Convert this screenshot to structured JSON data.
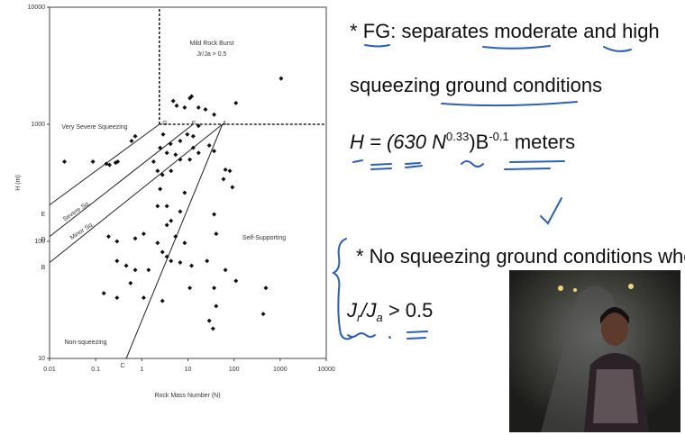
{
  "chart_data": {
    "type": "scatter",
    "xlabel": "Rock Mass Number (N)",
    "ylabel": "H (m)",
    "xscale": "log",
    "yscale": "log",
    "xlim": [
      0.01,
      10000
    ],
    "ylim": [
      10,
      10000
    ],
    "xticks": [
      0.01,
      0.1,
      1,
      10,
      100,
      1000,
      10000
    ],
    "yticks": [
      10,
      100,
      1000,
      10000
    ],
    "color": "#111111",
    "x": [
      0.021,
      0.087,
      0.17,
      0.2,
      0.27,
      0.3,
      0.6,
      0.72,
      2.9,
      2.5,
      4.2,
      6.8,
      9.7,
      13,
      17,
      4.8,
      5.7,
      8.5,
      11,
      12,
      17,
      24,
      37,
      110,
      1050,
      3.5,
      5.4,
      6.8,
      11,
      13,
      17,
      29,
      37,
      1.8,
      2.2,
      2.8,
      4.3,
      65,
      81,
      59,
      92,
      0.19,
      0.29,
      0.72,
      1.1,
      2.2,
      2.8,
      3.5,
      4.3,
      5.4,
      8.5,
      0.29,
      0.46,
      0.72,
      1.4,
      3.5,
      4.3,
      6.8,
      12,
      26,
      0.15,
      0.29,
      0.57,
      1.1,
      2.8,
      11,
      37,
      41,
      65,
      37,
      41,
      29,
      35,
      490,
      430,
      110,
      2.2,
      3.5,
      6.8,
      2.5,
      8.5
    ],
    "values": [
      480,
      480,
      460,
      450,
      470,
      480,
      720,
      790,
      820,
      630,
      680,
      720,
      820,
      790,
      970,
      1580,
      1440,
      1390,
      1670,
      1730,
      1390,
      1340,
      1210,
      1520,
      2460,
      570,
      550,
      500,
      500,
      630,
      570,
      660,
      590,
      480,
      400,
      370,
      400,
      410,
      400,
      340,
      290,
      110,
      100,
      106,
      116,
      97,
      81,
      138,
      150,
      110,
      97,
      68,
      62,
      57,
      57,
      74,
      68,
      66,
      62,
      68,
      36,
      33,
      44,
      33,
      31,
      40,
      170,
      116,
      57,
      40,
      28,
      21,
      18,
      40,
      24,
      46,
      200,
      200,
      180,
      280,
      260
    ],
    "boundaries": [
      {
        "x": [
          2.4,
          2.4
        ],
        "y": [
          1000,
          10000
        ],
        "dashed": true
      },
      {
        "x": [
          2.4,
          10000
        ],
        "y": [
          1000,
          1000
        ],
        "dashed": true
      },
      {
        "x": [
          0.46,
          56
        ],
        "y": [
          10,
          1000
        ],
        "dashed": false
      },
      {
        "x": [
          0.01,
          2.4
        ],
        "y": [
          205,
          1000
        ],
        "dashed": false
      },
      {
        "x": [
          0.01,
          13
        ],
        "y": [
          110,
          1000
        ],
        "dashed": false
      },
      {
        "x": [
          0.01,
          56
        ],
        "y": [
          66,
          1000
        ],
        "dashed": false
      }
    ],
    "annotations": [
      "Mild Rock Burst",
      "Jr/Ja > 0.5",
      "Very Severe Squeezing",
      "Severe Sq.",
      "Minor Sq.",
      "Self-Supporting",
      "Non-squeezing",
      "G",
      "F",
      "A",
      "E",
      "D",
      "B",
      "C"
    ]
  },
  "slide": {
    "bullet1": {
      "star": "* ",
      "fg": "FG",
      "rest": ": separates moderate and high"
    },
    "line2": "squeezing ground conditions",
    "formula": {
      "lead": "H = (630 ",
      "n": "N",
      "exp1": "0.33",
      "mid": ")B",
      "exp2": "-0.1",
      "tail": " meters"
    },
    "bullet2": "* No squeezing ground conditions where",
    "ratio": {
      "j1": "J",
      "sub1": "r",
      "slash": "/J",
      "sub2": "a",
      "tail": " > 0.5"
    }
  }
}
